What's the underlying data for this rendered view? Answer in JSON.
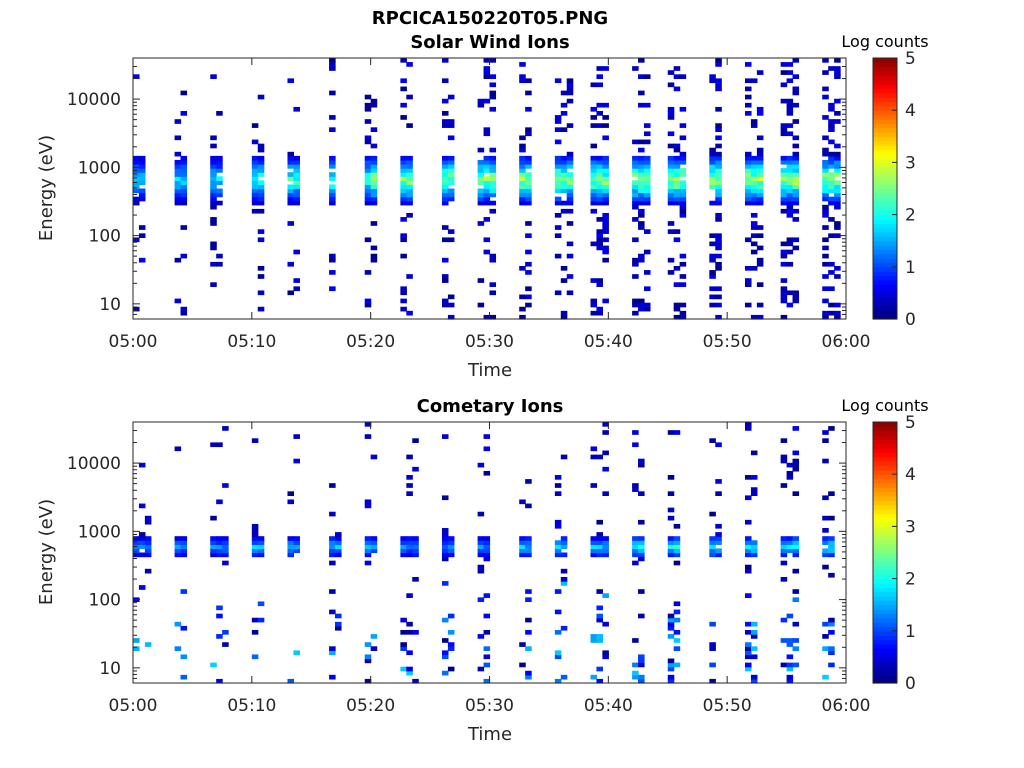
{
  "figure_title": "RPCICA150220T05.PNG",
  "chart_data": [
    {
      "type": "heatmap",
      "title": "Solar Wind Ions",
      "xlabel": "Time",
      "ylabel": "Energy (eV)",
      "x_ticks": [
        "05:00",
        "05:10",
        "05:20",
        "05:30",
        "05:40",
        "05:50",
        "06:00"
      ],
      "x_range": [
        "05:00",
        "06:00"
      ],
      "y_scale": "log",
      "y_ticks": [
        10,
        100,
        1000,
        10000
      ],
      "y_tick_labels": [
        "10",
        "100",
        "1000",
        "10000"
      ],
      "y_range": [
        6,
        40000
      ],
      "colorbar": {
        "label": "Log counts",
        "range": [
          0,
          5
        ],
        "ticks": [
          "0",
          "1",
          "2",
          "3",
          "4",
          "5"
        ],
        "colormap": "jet"
      },
      "peak_energy_band_eV": [
        300,
        1500
      ],
      "activity_by_10min": [
        {
          "time": "05:00",
          "max_log_counts": 2.0
        },
        {
          "time": "05:10",
          "max_log_counts": 2.5
        },
        {
          "time": "05:20",
          "max_log_counts": 3.0
        },
        {
          "time": "05:30",
          "max_log_counts": 3.0
        },
        {
          "time": "05:40",
          "max_log_counts": 3.2
        },
        {
          "time": "05:50",
          "max_log_counts": 3.2
        }
      ]
    },
    {
      "type": "heatmap",
      "title": "Cometary Ions",
      "xlabel": "Time",
      "ylabel": "Energy (eV)",
      "x_ticks": [
        "05:00",
        "05:10",
        "05:20",
        "05:30",
        "05:40",
        "05:50",
        "06:00"
      ],
      "x_range": [
        "05:00",
        "06:00"
      ],
      "y_scale": "log",
      "y_ticks": [
        10,
        100,
        1000,
        10000
      ],
      "y_tick_labels": [
        "10",
        "100",
        "1000",
        "10000"
      ],
      "y_range": [
        6,
        40000
      ],
      "colorbar": {
        "label": "Log counts",
        "range": [
          0,
          5
        ],
        "ticks": [
          "0",
          "1",
          "2",
          "3",
          "4",
          "5"
        ],
        "colormap": "jet"
      },
      "peak_energy_band_eV": [
        400,
        900
      ],
      "activity_by_10min": [
        {
          "time": "05:00",
          "max_log_counts": 1.5
        },
        {
          "time": "05:10",
          "max_log_counts": 1.8
        },
        {
          "time": "05:20",
          "max_log_counts": 1.5
        },
        {
          "time": "05:30",
          "max_log_counts": 1.8
        },
        {
          "time": "05:40",
          "max_log_counts": 2.2
        },
        {
          "time": "05:50",
          "max_log_counts": 2.2
        }
      ]
    }
  ]
}
